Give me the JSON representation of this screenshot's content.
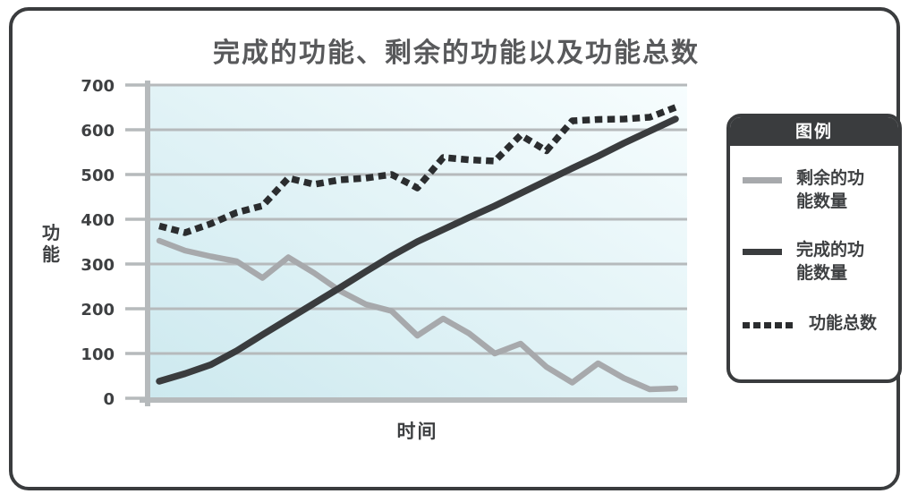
{
  "chart_data": {
    "type": "line",
    "title": "完成的功能、剩余的功能以及功能总数",
    "xlabel": "时间",
    "ylabel": "功能",
    "x": [
      1,
      2,
      3,
      4,
      5,
      6,
      7,
      8,
      9,
      10,
      11,
      12,
      13,
      14,
      15,
      16,
      17,
      18,
      19,
      20,
      21
    ],
    "series": [
      {
        "key": "remaining",
        "name": "剩余的功能数量",
        "color": "#a7a9ac",
        "dashed": false,
        "values": [
          352,
          330,
          317,
          306,
          269,
          315,
          280,
          240,
          210,
          195,
          140,
          178,
          145,
          100,
          122,
          70,
          35,
          78,
          45,
          20,
          22
        ]
      },
      {
        "key": "completed",
        "name": "完成的功能数量",
        "color": "#3a3c3e",
        "dashed": false,
        "values": [
          38,
          55,
          75,
          106,
          142,
          177,
          212,
          247,
          283,
          318,
          350,
          377,
          404,
          430,
          458,
          486,
          514,
          541,
          570,
          597,
          624
        ]
      },
      {
        "key": "total",
        "name": "功能总数",
        "color": "#2b2d2f",
        "dashed": true,
        "values": [
          385,
          370,
          390,
          415,
          430,
          492,
          478,
          488,
          492,
          500,
          470,
          538,
          533,
          530,
          588,
          553,
          620,
          623,
          624,
          628,
          650
        ]
      }
    ],
    "ylim": [
      0,
      700
    ],
    "yticks": [
      0,
      100,
      200,
      300,
      400,
      500,
      600,
      700
    ],
    "x_tick_labels_visible": false,
    "grid": true,
    "legend_position": "right"
  },
  "legend": {
    "title": "图例",
    "items": [
      {
        "key": "remaining",
        "label": "剩余的功能数量",
        "swatch": "gray-line-swatch"
      },
      {
        "key": "completed",
        "label": "完成的功能数量",
        "swatch": "dark-line-swatch"
      },
      {
        "key": "total",
        "label": "功能总数",
        "swatch": "dashed-line-swatch"
      }
    ]
  },
  "colors": {
    "frame_border": "#3a3c3e",
    "title_text": "#58595b",
    "axis_text": "#3e4042",
    "grid_line": "#b6babc",
    "axis_line": "#b6babc",
    "plot_bg_start": "#cde9ef",
    "plot_bg_end": "#f7fdfe",
    "legend_border": "#3a3c3e",
    "legend_header_bg": "#3a3c3e",
    "legend_header_text": "#ffffff"
  }
}
